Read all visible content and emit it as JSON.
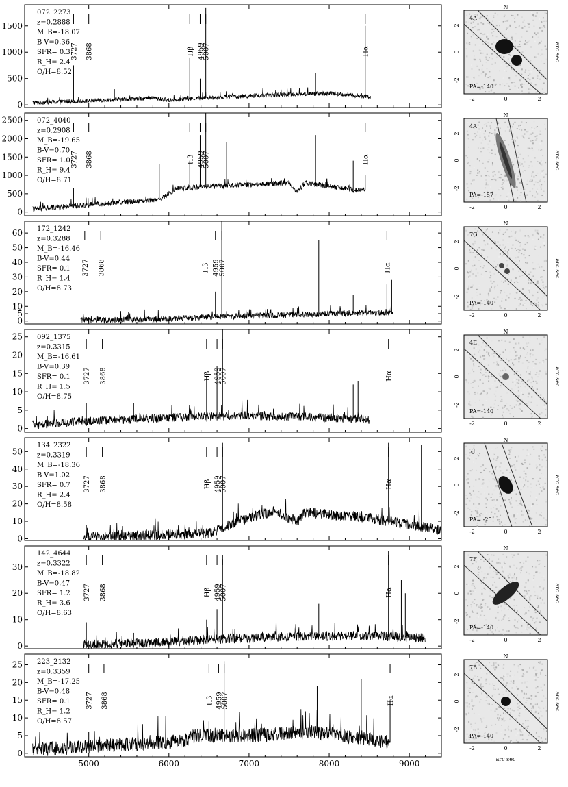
{
  "chart_data": [
    {
      "type": "line",
      "id": "072_2273",
      "annotation": [
        "072_2273",
        "z=0.2888",
        "M_B=-18.07",
        "B-V=0.36",
        "SFR= 0.3",
        "R_H= 2.4",
        "O/H=8.52"
      ],
      "ylim": [
        -50,
        1900
      ],
      "yticks": [
        0,
        500,
        1000,
        1500
      ],
      "xlim": [
        4200,
        9400
      ],
      "line_markers": [
        {
          "x": 4810,
          "label": "3727"
        },
        {
          "x": 5000,
          "label": "3868"
        },
        {
          "x": 6260,
          "label": "Hβ"
        },
        {
          "x": 6390,
          "label": "4959"
        },
        {
          "x": 6460,
          "label": "5007"
        },
        {
          "x": 8450,
          "label": "Hα"
        }
      ],
      "spectrum": {
        "start": 4300,
        "end": 8520,
        "baseline": [
          [
            4300,
            40
          ],
          [
            5000,
            80
          ],
          [
            5800,
            130
          ],
          [
            6000,
            90
          ],
          [
            6500,
            140
          ],
          [
            7500,
            200
          ],
          [
            8000,
            220
          ],
          [
            8520,
            150
          ]
        ],
        "noise": 40,
        "peaks": [
          [
            4810,
            750
          ],
          [
            5320,
            300
          ],
          [
            6260,
            900
          ],
          [
            6390,
            500
          ],
          [
            6460,
            1850
          ],
          [
            7830,
            600
          ],
          [
            8450,
            1500
          ]
        ]
      },
      "stamp": {
        "label": "4A",
        "pa": "PA=-140",
        "north": "N",
        "shape": "double"
      }
    },
    {
      "type": "line",
      "id": "072_4040",
      "annotation": [
        "072_4040",
        "z=0.2908",
        "M_B=-19.65",
        "B-V=0.70",
        "SFR= 1.0",
        "R_H= 9.4",
        "O/H=8.71"
      ],
      "ylim": [
        -100,
        2700
      ],
      "yticks": [
        0,
        500,
        1000,
        1500,
        2000,
        2500
      ],
      "xlim": [
        4200,
        9400
      ],
      "line_markers": [
        {
          "x": 4810,
          "label": "3727"
        },
        {
          "x": 5000,
          "label": "3868"
        },
        {
          "x": 6260,
          "label": "Hβ"
        },
        {
          "x": 6390,
          "label": "4959"
        },
        {
          "x": 6460,
          "label": "5007"
        },
        {
          "x": 8450,
          "label": "Hα"
        }
      ],
      "spectrum": {
        "start": 4300,
        "end": 8450,
        "baseline": [
          [
            4300,
            80
          ],
          [
            5000,
            200
          ],
          [
            5900,
            350
          ],
          [
            6100,
            650
          ],
          [
            7000,
            750
          ],
          [
            7500,
            800
          ],
          [
            7600,
            550
          ],
          [
            7700,
            800
          ],
          [
            8300,
            600
          ],
          [
            8450,
            600
          ]
        ],
        "noise": 70,
        "peaks": [
          [
            4810,
            650
          ],
          [
            5880,
            1300
          ],
          [
            6260,
            1400
          ],
          [
            6390,
            2100
          ],
          [
            6460,
            2700
          ],
          [
            6720,
            1900
          ],
          [
            7830,
            2100
          ],
          [
            8300,
            1400
          ],
          [
            8450,
            1000
          ]
        ]
      },
      "stamp": {
        "label": "4A",
        "pa": "PA=-157",
        "north": "N",
        "shape": "edge"
      }
    },
    {
      "type": "line",
      "id": "172_1242",
      "annotation": [
        "172_1242",
        "z=0.3288",
        "M_B=-16.46",
        "B-V=0.44",
        "SFR= 0.1",
        "R_H= 1.4",
        "O/H=8.73"
      ],
      "ylim": [
        -2,
        68
      ],
      "yticks": [
        0,
        5,
        10,
        20,
        30,
        40,
        50,
        60
      ],
      "xlim": [
        4200,
        9400
      ],
      "line_markers": [
        {
          "x": 4950,
          "label": "3727"
        },
        {
          "x": 5150,
          "label": "3868"
        },
        {
          "x": 6450,
          "label": "Hβ"
        },
        {
          "x": 6580,
          "label": "4959"
        },
        {
          "x": 6660,
          "label": "5007"
        },
        {
          "x": 8720,
          "label": "Hα"
        }
      ],
      "spectrum": {
        "start": 4900,
        "end": 8800,
        "baseline": [
          [
            4900,
            0.5
          ],
          [
            6000,
            1.5
          ],
          [
            6600,
            3
          ],
          [
            7500,
            4
          ],
          [
            8000,
            5
          ],
          [
            8800,
            6
          ]
        ],
        "noise": 2,
        "peaks": [
          [
            6450,
            10
          ],
          [
            6580,
            20
          ],
          [
            6660,
            68
          ],
          [
            7870,
            55
          ],
          [
            8300,
            18
          ],
          [
            8720,
            25
          ],
          [
            8780,
            28
          ]
        ]
      },
      "stamp": {
        "label": "7G",
        "pa": "PA=-140",
        "north": "N",
        "shape": "small-double"
      }
    },
    {
      "type": "line",
      "id": "092_1375",
      "annotation": [
        "092_1375",
        "z=0.3315",
        "M_B=-16.61",
        "B-V=0.39",
        "SFR= 0.1",
        "R_H= 1.5",
        "O/H=8.75"
      ],
      "ylim": [
        -1,
        27
      ],
      "yticks": [
        0,
        5,
        10,
        15,
        20,
        25
      ],
      "xlim": [
        4200,
        9400
      ],
      "line_markers": [
        {
          "x": 4970,
          "label": "3727"
        },
        {
          "x": 5170,
          "label": "3868"
        },
        {
          "x": 6470,
          "label": "Hβ"
        },
        {
          "x": 6600,
          "label": "4959"
        },
        {
          "x": 6670,
          "label": "5007"
        },
        {
          "x": 8740,
          "label": "Hα"
        }
      ],
      "spectrum": {
        "start": 4300,
        "end": 8500,
        "baseline": [
          [
            4300,
            1
          ],
          [
            5000,
            2
          ],
          [
            6000,
            3
          ],
          [
            7000,
            3.5
          ],
          [
            8000,
            3
          ],
          [
            8500,
            2.5
          ]
        ],
        "noise": 1.2,
        "peaks": [
          [
            4970,
            7
          ],
          [
            5560,
            7
          ],
          [
            6470,
            14
          ],
          [
            6600,
            17
          ],
          [
            6670,
            27
          ],
          [
            8300,
            12
          ],
          [
            8360,
            13
          ]
        ]
      },
      "stamp": {
        "label": "4E",
        "pa": "PA=-140",
        "north": "N",
        "shape": "faint"
      }
    },
    {
      "type": "line",
      "id": "134_2322",
      "annotation": [
        "134_2322",
        "z=0.3319",
        "M_B=-18.36",
        "B-V=1.02",
        "SFR= 0.7",
        "R_H= 2.4",
        "O/H=8.58"
      ],
      "ylim": [
        -1,
        58
      ],
      "yticks": [
        0,
        10,
        20,
        30,
        40,
        50
      ],
      "xlim": [
        4200,
        9400
      ],
      "line_markers": [
        {
          "x": 4970,
          "label": "3727"
        },
        {
          "x": 5170,
          "label": "3868"
        },
        {
          "x": 6470,
          "label": "Hβ"
        },
        {
          "x": 6600,
          "label": "4959"
        },
        {
          "x": 6670,
          "label": "5007"
        },
        {
          "x": 8740,
          "label": "Hα"
        }
      ],
      "spectrum": {
        "start": 4930,
        "end": 9400,
        "baseline": [
          [
            4930,
            0.5
          ],
          [
            5500,
            1.5
          ],
          [
            6500,
            3
          ],
          [
            6700,
            7
          ],
          [
            7000,
            12
          ],
          [
            7300,
            16
          ],
          [
            7600,
            10
          ],
          [
            7700,
            15
          ],
          [
            8500,
            12
          ],
          [
            9000,
            8
          ],
          [
            9400,
            5
          ]
        ],
        "noise": 3,
        "peaks": [
          [
            4970,
            8
          ],
          [
            6670,
            55
          ],
          [
            8740,
            55
          ],
          [
            9150,
            54
          ]
        ]
      },
      "stamp": {
        "label": "7J",
        "pa": "PA= -25",
        "north": "N",
        "shape": "compact"
      }
    },
    {
      "type": "line",
      "id": "142_4644",
      "annotation": [
        "142_4644",
        "z=0.3322",
        "M_B=-18.82",
        "B-V=0.47",
        "SFR= 1.2",
        "R_H= 3.6",
        "O/H=8.63"
      ],
      "ylim": [
        -1,
        38
      ],
      "yticks": [
        0,
        10,
        20,
        30
      ],
      "xlim": [
        4200,
        9400
      ],
      "line_markers": [
        {
          "x": 4970,
          "label": "3727"
        },
        {
          "x": 5170,
          "label": "3868"
        },
        {
          "x": 6470,
          "label": "Hβ"
        },
        {
          "x": 6600,
          "label": "4959"
        },
        {
          "x": 6670,
          "label": "5007"
        },
        {
          "x": 8740,
          "label": "Hα"
        }
      ],
      "spectrum": {
        "start": 4930,
        "end": 9200,
        "baseline": [
          [
            4930,
            0.5
          ],
          [
            6000,
            1.5
          ],
          [
            6500,
            2.5
          ],
          [
            7500,
            3.5
          ],
          [
            8500,
            4
          ],
          [
            9200,
            3
          ]
        ],
        "noise": 1.8,
        "peaks": [
          [
            4970,
            9
          ],
          [
            5560,
            5
          ],
          [
            6470,
            10
          ],
          [
            6600,
            14
          ],
          [
            6670,
            33
          ],
          [
            7870,
            16
          ],
          [
            8740,
            36
          ],
          [
            8900,
            25
          ],
          [
            8950,
            20
          ]
        ]
      },
      "stamp": {
        "label": "7F",
        "pa": "PA=-140",
        "north": "N",
        "shape": "elongated"
      }
    },
    {
      "type": "line",
      "id": "223_2132",
      "annotation": [
        "223_2132",
        "z=0.3359",
        "M_B=-17.25",
        "B-V=0.48",
        "SFR= 0.1",
        "R_H= 1.2",
        "O/H=8.57"
      ],
      "ylim": [
        -1,
        28
      ],
      "yticks": [
        0,
        5,
        10,
        15,
        20,
        25
      ],
      "xlim": [
        4200,
        9400
      ],
      "line_markers": [
        {
          "x": 5000,
          "label": "3727"
        },
        {
          "x": 5190,
          "label": "3868"
        },
        {
          "x": 6500,
          "label": "Hβ"
        },
        {
          "x": 6620,
          "label": "4959"
        },
        {
          "x": 6690,
          "label": "5007"
        },
        {
          "x": 8760,
          "label": "Hα"
        }
      ],
      "spectrum": {
        "start": 4300,
        "end": 8760,
        "baseline": [
          [
            4300,
            1
          ],
          [
            5500,
            2.5
          ],
          [
            6200,
            3.5
          ],
          [
            6300,
            5
          ],
          [
            7000,
            5
          ],
          [
            7800,
            6
          ],
          [
            8500,
            4
          ],
          [
            8760,
            3
          ]
        ],
        "noise": 2,
        "peaks": [
          [
            5000,
            6
          ],
          [
            6500,
            9
          ],
          [
            6690,
            26
          ],
          [
            7850,
            19
          ],
          [
            8400,
            21
          ],
          [
            8760,
            15
          ]
        ]
      },
      "stamp": {
        "label": "7B",
        "pa": "PA=-140",
        "north": "N",
        "shape": "round"
      }
    }
  ],
  "xaxis": {
    "ticks": [
      5000,
      6000,
      7000,
      8000,
      9000
    ]
  },
  "stamp_axis": {
    "ticks": [
      "2",
      "0",
      "-2"
    ],
    "xlabel": "arc sec",
    "ylabel": "arc sec"
  }
}
